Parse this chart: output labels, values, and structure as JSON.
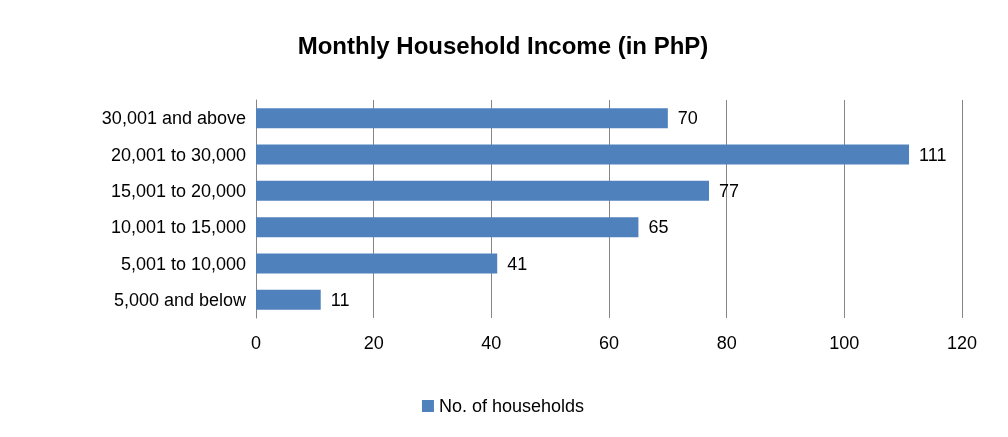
{
  "chart_data": {
    "type": "bar",
    "orientation": "horizontal",
    "title": "Monthly Household Income (in PhP)",
    "categories": [
      "30,001 and above",
      "20,001 to 30,000",
      "15,001 to 20,000",
      "10,001 to 15,000",
      "5,001 to 10,000",
      "5,000 and below"
    ],
    "series": [
      {
        "name": "No. of households",
        "color": "#4f81bd",
        "values": [
          70,
          111,
          77,
          65,
          41,
          11
        ]
      }
    ],
    "xlim": [
      0,
      120
    ],
    "xticks": [
      0,
      20,
      40,
      60,
      80,
      100,
      120
    ],
    "grid": "x",
    "legend": "bottom",
    "data_labels": true
  }
}
